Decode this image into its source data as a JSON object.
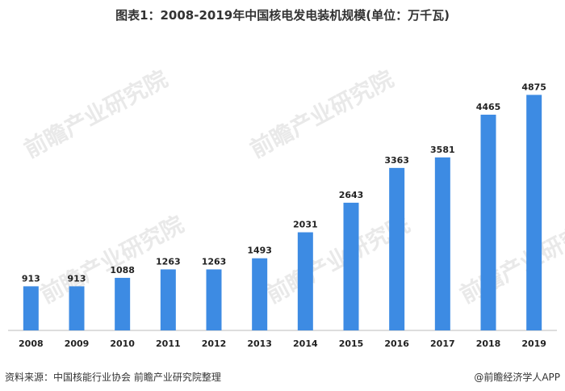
{
  "title": "图表1：2008-2019年中国核电发电装机规模(单位：万千瓦)",
  "chart_data": {
    "type": "bar",
    "categories": [
      "2008",
      "2009",
      "2010",
      "2011",
      "2012",
      "2013",
      "2014",
      "2015",
      "2016",
      "2017",
      "2018",
      "2019"
    ],
    "values": [
      913,
      913,
      1088,
      1263,
      1263,
      1493,
      2031,
      2643,
      3363,
      3581,
      4465,
      4875
    ],
    "ylim": [
      0,
      5200
    ],
    "bar_color": "#3d8be3",
    "grid": false,
    "legend": "none"
  },
  "watermark": "前瞻产业研究院",
  "footer": {
    "source": "资料来源：中国核能行业协会  前瞻产业研究院整理",
    "brand": "@前瞻经济学人APP"
  }
}
